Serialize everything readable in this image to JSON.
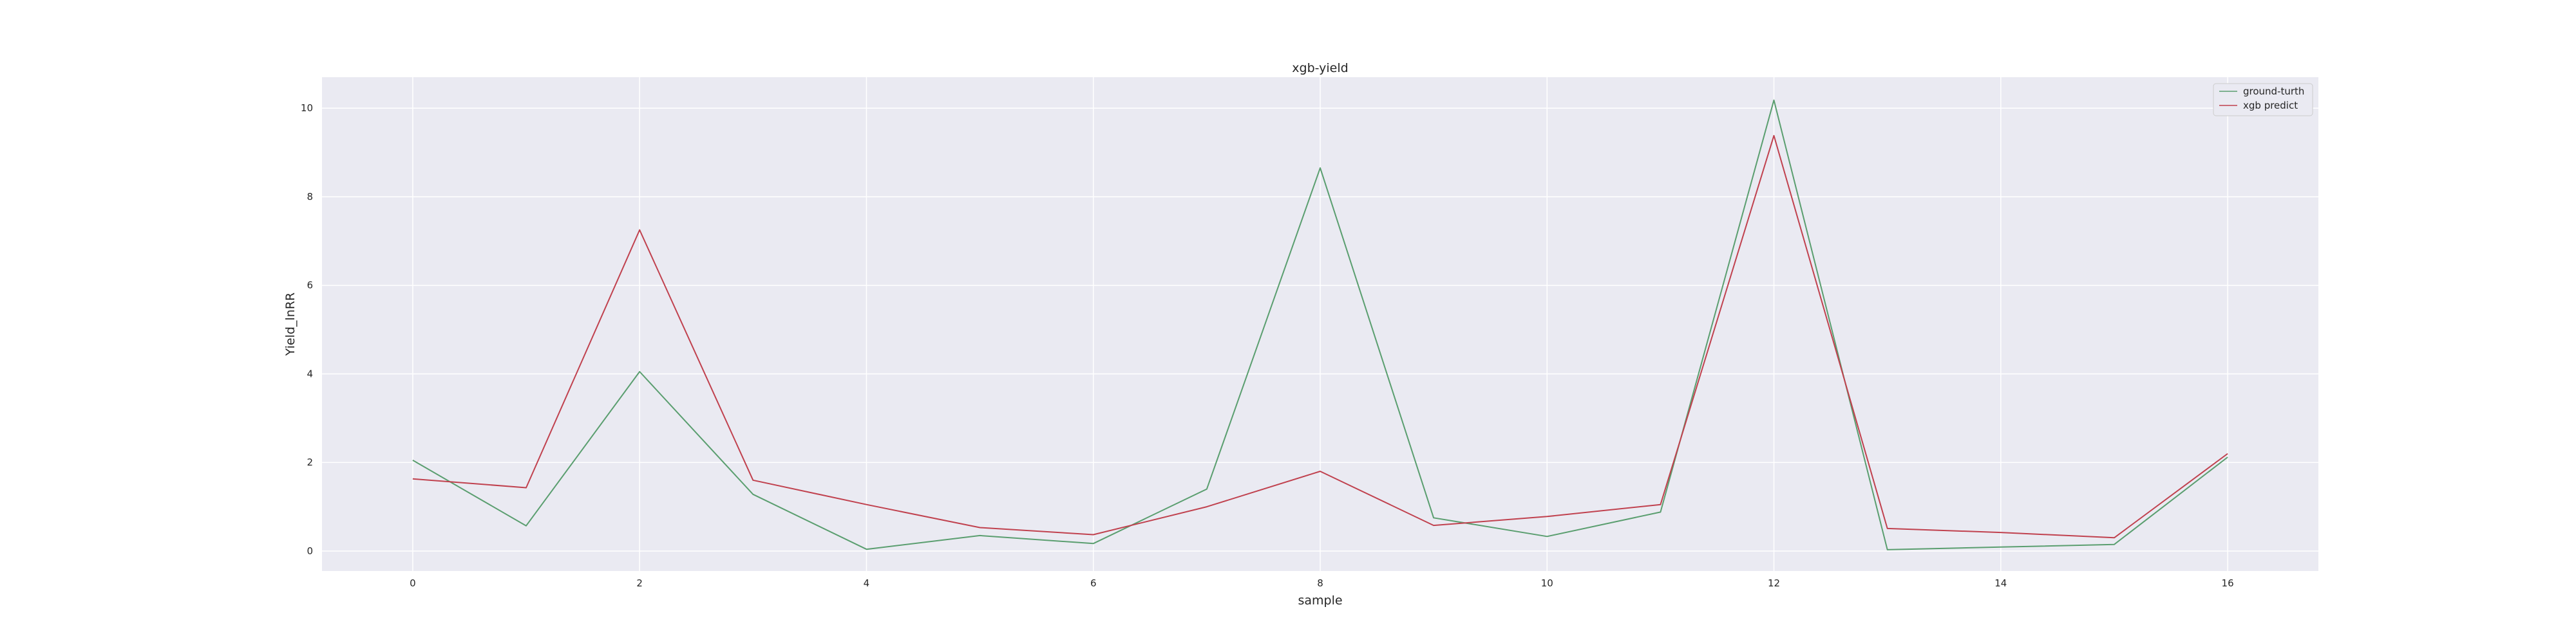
{
  "chart_data": {
    "type": "line",
    "title": "xgb-yield",
    "xlabel": "sample",
    "ylabel": "Yield_lnRR",
    "xlim": [
      -0.8,
      16.8
    ],
    "ylim": [
      -0.45,
      10.7
    ],
    "xticks": [
      0,
      2,
      4,
      6,
      8,
      10,
      12,
      14,
      16
    ],
    "yticks": [
      0,
      2,
      4,
      6,
      8,
      10
    ],
    "grid": true,
    "legend_position": "top-right",
    "x": [
      0,
      1,
      2,
      3,
      4,
      5,
      6,
      7,
      8,
      9,
      10,
      11,
      12,
      13,
      14,
      15,
      16
    ],
    "series": [
      {
        "name": "ground-turth",
        "color": "#5a9e6f",
        "values": [
          2.05,
          0.57,
          4.05,
          1.28,
          0.04,
          0.35,
          0.17,
          1.4,
          8.65,
          0.75,
          0.33,
          0.88,
          10.18,
          0.03,
          0.09,
          0.15,
          2.12
        ]
      },
      {
        "name": "xgb predict",
        "color": "#c0414e",
        "values": [
          1.63,
          1.43,
          7.25,
          1.6,
          1.05,
          0.53,
          0.37,
          1.0,
          1.8,
          0.58,
          0.78,
          1.05,
          9.38,
          0.51,
          0.42,
          0.3,
          2.2
        ]
      }
    ]
  }
}
